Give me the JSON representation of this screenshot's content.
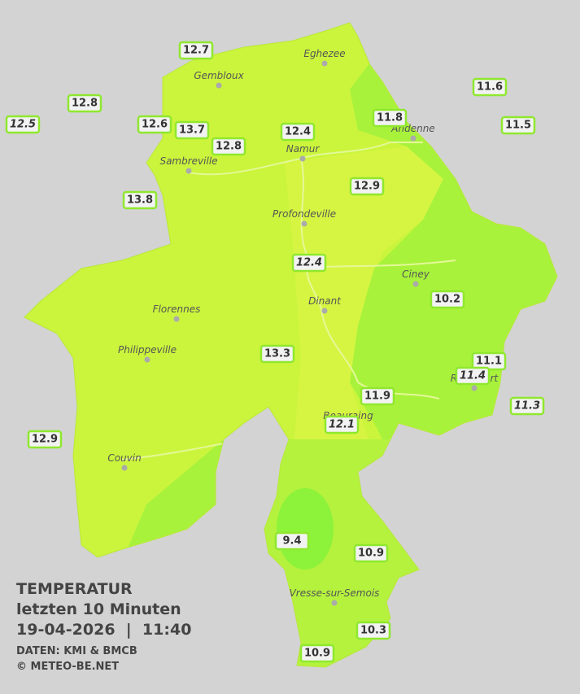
{
  "header": {
    "title": "TEMPERATUR",
    "subtitle": "letzten 10 Minuten",
    "datetime": "19-04-2026  |  11:40",
    "source": "DATEN: KMI & BMCB",
    "copyright": "© METEO-BE.NET"
  },
  "cities": [
    "Eghezee",
    "Gembloux",
    "Andenne",
    "Namur",
    "Sambreville",
    "Profondeville",
    "Ciney",
    "Dinant",
    "Florennes",
    "Philippeville",
    "Rochefort",
    "Beauraing",
    "Couvin",
    "Vresse-sur-Semois"
  ],
  "temperatures": [
    {
      "value": 12.7,
      "italic": false
    },
    {
      "value": 12.8,
      "italic": false
    },
    {
      "value": 12.5,
      "italic": true
    },
    {
      "value": 12.6,
      "italic": false
    },
    {
      "value": 13.7,
      "italic": false
    },
    {
      "value": 12.8,
      "italic": false
    },
    {
      "value": 12.4,
      "italic": false
    },
    {
      "value": 11.8,
      "italic": false
    },
    {
      "value": 11.6,
      "italic": false
    },
    {
      "value": 11.5,
      "italic": false
    },
    {
      "value": 13.8,
      "italic": false
    },
    {
      "value": 12.9,
      "italic": false
    },
    {
      "value": 12.4,
      "italic": true
    },
    {
      "value": 10.2,
      "italic": false
    },
    {
      "value": 13.3,
      "italic": false
    },
    {
      "value": 11.1,
      "italic": false
    },
    {
      "value": 11.4,
      "italic": true
    },
    {
      "value": 11.9,
      "italic": false
    },
    {
      "value": 11.3,
      "italic": true
    },
    {
      "value": 12.1,
      "italic": true
    },
    {
      "value": 12.9,
      "italic": false
    },
    {
      "value": 9.4,
      "italic": false
    },
    {
      "value": 10.9,
      "italic": false
    },
    {
      "value": 10.3,
      "italic": false
    },
    {
      "value": 10.9,
      "italic": false
    }
  ]
}
